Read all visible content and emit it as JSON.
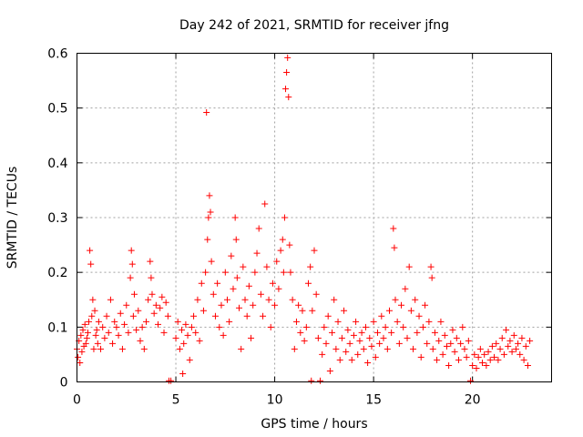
{
  "chart_data": {
    "type": "scatter",
    "title": "Day 242 of 2021, SRMTID for receiver jfng",
    "xlabel": "GPS time / hours",
    "ylabel": "SRMTID / TECUs",
    "xlim": [
      0,
      24
    ],
    "ylim": [
      0,
      0.6
    ],
    "x_ticks": [
      0,
      5,
      10,
      15,
      20
    ],
    "x_tick_labels": [
      "0",
      "5",
      "10",
      "15",
      "20"
    ],
    "y_ticks": [
      0,
      0.1,
      0.2,
      0.3,
      0.4,
      0.5,
      0.6
    ],
    "y_tick_labels": [
      "0",
      "0.1",
      "0.2",
      "0.3",
      "0.4",
      "0.5",
      "0.6"
    ],
    "grid": true,
    "marker": "plus",
    "color": "#ff0000",
    "series": [
      {
        "name": "SRMTID",
        "points": [
          [
            0.0,
            0.06
          ],
          [
            0.05,
            0.045
          ],
          [
            0.1,
            0.075
          ],
          [
            0.15,
            0.035
          ],
          [
            0.2,
            0.085
          ],
          [
            0.25,
            0.055
          ],
          [
            0.3,
            0.095
          ],
          [
            0.35,
            0.065
          ],
          [
            0.4,
            0.105
          ],
          [
            0.45,
            0.07
          ],
          [
            0.5,
            0.08
          ],
          [
            0.55,
            0.09
          ],
          [
            0.6,
            0.11
          ],
          [
            0.65,
            0.24
          ],
          [
            0.7,
            0.215
          ],
          [
            0.75,
            0.12
          ],
          [
            0.8,
            0.15
          ],
          [
            0.85,
            0.06
          ],
          [
            0.9,
            0.13
          ],
          [
            0.95,
            0.085
          ],
          [
            1.0,
            0.095
          ],
          [
            1.05,
            0.07
          ],
          [
            1.1,
            0.11
          ],
          [
            1.2,
            0.06
          ],
          [
            1.3,
            0.1
          ],
          [
            1.4,
            0.08
          ],
          [
            1.5,
            0.12
          ],
          [
            1.6,
            0.09
          ],
          [
            1.7,
            0.15
          ],
          [
            1.8,
            0.07
          ],
          [
            1.9,
            0.11
          ],
          [
            2.0,
            0.1
          ],
          [
            2.1,
            0.085
          ],
          [
            2.2,
            0.125
          ],
          [
            2.3,
            0.06
          ],
          [
            2.4,
            0.105
          ],
          [
            2.5,
            0.14
          ],
          [
            2.6,
            0.09
          ],
          [
            2.7,
            0.19
          ],
          [
            2.75,
            0.24
          ],
          [
            2.8,
            0.215
          ],
          [
            2.85,
            0.12
          ],
          [
            2.9,
            0.16
          ],
          [
            3.0,
            0.095
          ],
          [
            3.1,
            0.13
          ],
          [
            3.2,
            0.075
          ],
          [
            3.3,
            0.1
          ],
          [
            3.4,
            0.06
          ],
          [
            3.5,
            0.11
          ],
          [
            3.6,
            0.15
          ],
          [
            3.7,
            0.22
          ],
          [
            3.75,
            0.19
          ],
          [
            3.8,
            0.16
          ],
          [
            3.9,
            0.125
          ],
          [
            4.0,
            0.14
          ],
          [
            4.1,
            0.105
          ],
          [
            4.2,
            0.135
          ],
          [
            4.3,
            0.155
          ],
          [
            4.4,
            0.09
          ],
          [
            4.5,
            0.145
          ],
          [
            4.6,
            0.12
          ],
          [
            4.65,
            0.002
          ],
          [
            4.75,
            0.002
          ],
          [
            5.0,
            0.08
          ],
          [
            5.1,
            0.11
          ],
          [
            5.2,
            0.06
          ],
          [
            5.3,
            0.095
          ],
          [
            5.35,
            0.015
          ],
          [
            5.4,
            0.07
          ],
          [
            5.5,
            0.105
          ],
          [
            5.6,
            0.085
          ],
          [
            5.7,
            0.04
          ],
          [
            5.8,
            0.1
          ],
          [
            5.9,
            0.12
          ],
          [
            6.0,
            0.09
          ],
          [
            6.1,
            0.15
          ],
          [
            6.2,
            0.075
          ],
          [
            6.3,
            0.18
          ],
          [
            6.4,
            0.13
          ],
          [
            6.5,
            0.2
          ],
          [
            6.55,
            0.492
          ],
          [
            6.6,
            0.26
          ],
          [
            6.65,
            0.3
          ],
          [
            6.7,
            0.34
          ],
          [
            6.75,
            0.31
          ],
          [
            6.8,
            0.22
          ],
          [
            6.9,
            0.16
          ],
          [
            7.0,
            0.12
          ],
          [
            7.1,
            0.18
          ],
          [
            7.2,
            0.1
          ],
          [
            7.3,
            0.14
          ],
          [
            7.4,
            0.085
          ],
          [
            7.5,
            0.2
          ],
          [
            7.6,
            0.15
          ],
          [
            7.7,
            0.11
          ],
          [
            7.8,
            0.23
          ],
          [
            7.9,
            0.17
          ],
          [
            8.0,
            0.3
          ],
          [
            8.05,
            0.26
          ],
          [
            8.1,
            0.19
          ],
          [
            8.2,
            0.135
          ],
          [
            8.3,
            0.06
          ],
          [
            8.4,
            0.21
          ],
          [
            8.5,
            0.15
          ],
          [
            8.6,
            0.12
          ],
          [
            8.7,
            0.175
          ],
          [
            8.8,
            0.08
          ],
          [
            8.9,
            0.14
          ],
          [
            9.0,
            0.2
          ],
          [
            9.1,
            0.235
          ],
          [
            9.2,
            0.28
          ],
          [
            9.3,
            0.16
          ],
          [
            9.4,
            0.12
          ],
          [
            9.5,
            0.325
          ],
          [
            9.6,
            0.21
          ],
          [
            9.7,
            0.15
          ],
          [
            9.8,
            0.1
          ],
          [
            9.9,
            0.18
          ],
          [
            10.0,
            0.14
          ],
          [
            10.1,
            0.22
          ],
          [
            10.2,
            0.17
          ],
          [
            10.3,
            0.24
          ],
          [
            10.4,
            0.26
          ],
          [
            10.45,
            0.2
          ],
          [
            10.5,
            0.3
          ],
          [
            10.55,
            0.535
          ],
          [
            10.6,
            0.565
          ],
          [
            10.65,
            0.592
          ],
          [
            10.7,
            0.52
          ],
          [
            10.75,
            0.25
          ],
          [
            10.8,
            0.2
          ],
          [
            10.9,
            0.15
          ],
          [
            11.0,
            0.06
          ],
          [
            11.1,
            0.11
          ],
          [
            11.2,
            0.14
          ],
          [
            11.3,
            0.09
          ],
          [
            11.4,
            0.13
          ],
          [
            11.5,
            0.075
          ],
          [
            11.6,
            0.1
          ],
          [
            11.7,
            0.18
          ],
          [
            11.8,
            0.21
          ],
          [
            11.85,
            0.002
          ],
          [
            11.9,
            0.13
          ],
          [
            12.0,
            0.24
          ],
          [
            12.1,
            0.16
          ],
          [
            12.2,
            0.08
          ],
          [
            12.3,
            0.002
          ],
          [
            12.4,
            0.05
          ],
          [
            12.5,
            0.1
          ],
          [
            12.6,
            0.07
          ],
          [
            12.7,
            0.12
          ],
          [
            12.8,
            0.02
          ],
          [
            12.9,
            0.09
          ],
          [
            13.0,
            0.15
          ],
          [
            13.1,
            0.06
          ],
          [
            13.2,
            0.11
          ],
          [
            13.3,
            0.04
          ],
          [
            13.4,
            0.08
          ],
          [
            13.5,
            0.13
          ],
          [
            13.6,
            0.055
          ],
          [
            13.7,
            0.095
          ],
          [
            13.8,
            0.07
          ],
          [
            13.9,
            0.04
          ],
          [
            14.0,
            0.085
          ],
          [
            14.1,
            0.11
          ],
          [
            14.2,
            0.05
          ],
          [
            14.3,
            0.075
          ],
          [
            14.4,
            0.09
          ],
          [
            14.5,
            0.06
          ],
          [
            14.6,
            0.1
          ],
          [
            14.7,
            0.035
          ],
          [
            14.8,
            0.08
          ],
          [
            14.9,
            0.065
          ],
          [
            15.0,
            0.11
          ],
          [
            15.1,
            0.045
          ],
          [
            15.2,
            0.09
          ],
          [
            15.3,
            0.07
          ],
          [
            15.4,
            0.12
          ],
          [
            15.5,
            0.08
          ],
          [
            15.6,
            0.1
          ],
          [
            15.7,
            0.06
          ],
          [
            15.8,
            0.13
          ],
          [
            15.9,
            0.09
          ],
          [
            16.0,
            0.28
          ],
          [
            16.05,
            0.245
          ],
          [
            16.1,
            0.15
          ],
          [
            16.2,
            0.11
          ],
          [
            16.3,
            0.07
          ],
          [
            16.4,
            0.14
          ],
          [
            16.5,
            0.1
          ],
          [
            16.6,
            0.17
          ],
          [
            16.7,
            0.08
          ],
          [
            16.8,
            0.21
          ],
          [
            16.9,
            0.13
          ],
          [
            17.0,
            0.06
          ],
          [
            17.1,
            0.15
          ],
          [
            17.2,
            0.09
          ],
          [
            17.3,
            0.12
          ],
          [
            17.4,
            0.045
          ],
          [
            17.5,
            0.1
          ],
          [
            17.6,
            0.14
          ],
          [
            17.7,
            0.07
          ],
          [
            17.8,
            0.11
          ],
          [
            17.9,
            0.21
          ],
          [
            17.95,
            0.19
          ],
          [
            18.0,
            0.06
          ],
          [
            18.1,
            0.09
          ],
          [
            18.2,
            0.04
          ],
          [
            18.3,
            0.075
          ],
          [
            18.4,
            0.11
          ],
          [
            18.5,
            0.05
          ],
          [
            18.6,
            0.085
          ],
          [
            18.7,
            0.065
          ],
          [
            18.8,
            0.03
          ],
          [
            18.9,
            0.07
          ],
          [
            19.0,
            0.095
          ],
          [
            19.1,
            0.055
          ],
          [
            19.2,
            0.08
          ],
          [
            19.3,
            0.04
          ],
          [
            19.4,
            0.07
          ],
          [
            19.5,
            0.1
          ],
          [
            19.6,
            0.06
          ],
          [
            19.7,
            0.045
          ],
          [
            19.8,
            0.075
          ],
          [
            19.9,
            0.002
          ],
          [
            20.0,
            0.03
          ],
          [
            20.1,
            0.05
          ],
          [
            20.2,
            0.025
          ],
          [
            20.3,
            0.045
          ],
          [
            20.4,
            0.06
          ],
          [
            20.5,
            0.035
          ],
          [
            20.6,
            0.05
          ],
          [
            20.7,
            0.03
          ],
          [
            20.8,
            0.055
          ],
          [
            20.9,
            0.04
          ],
          [
            21.0,
            0.065
          ],
          [
            21.1,
            0.045
          ],
          [
            21.2,
            0.07
          ],
          [
            21.3,
            0.04
          ],
          [
            21.4,
            0.06
          ],
          [
            21.5,
            0.08
          ],
          [
            21.6,
            0.05
          ],
          [
            21.7,
            0.095
          ],
          [
            21.8,
            0.065
          ],
          [
            21.9,
            0.075
          ],
          [
            22.0,
            0.055
          ],
          [
            22.1,
            0.085
          ],
          [
            22.2,
            0.06
          ],
          [
            22.3,
            0.07
          ],
          [
            22.4,
            0.05
          ],
          [
            22.5,
            0.08
          ],
          [
            22.6,
            0.04
          ],
          [
            22.7,
            0.065
          ],
          [
            22.8,
            0.03
          ],
          [
            22.9,
            0.075
          ]
        ]
      }
    ]
  }
}
